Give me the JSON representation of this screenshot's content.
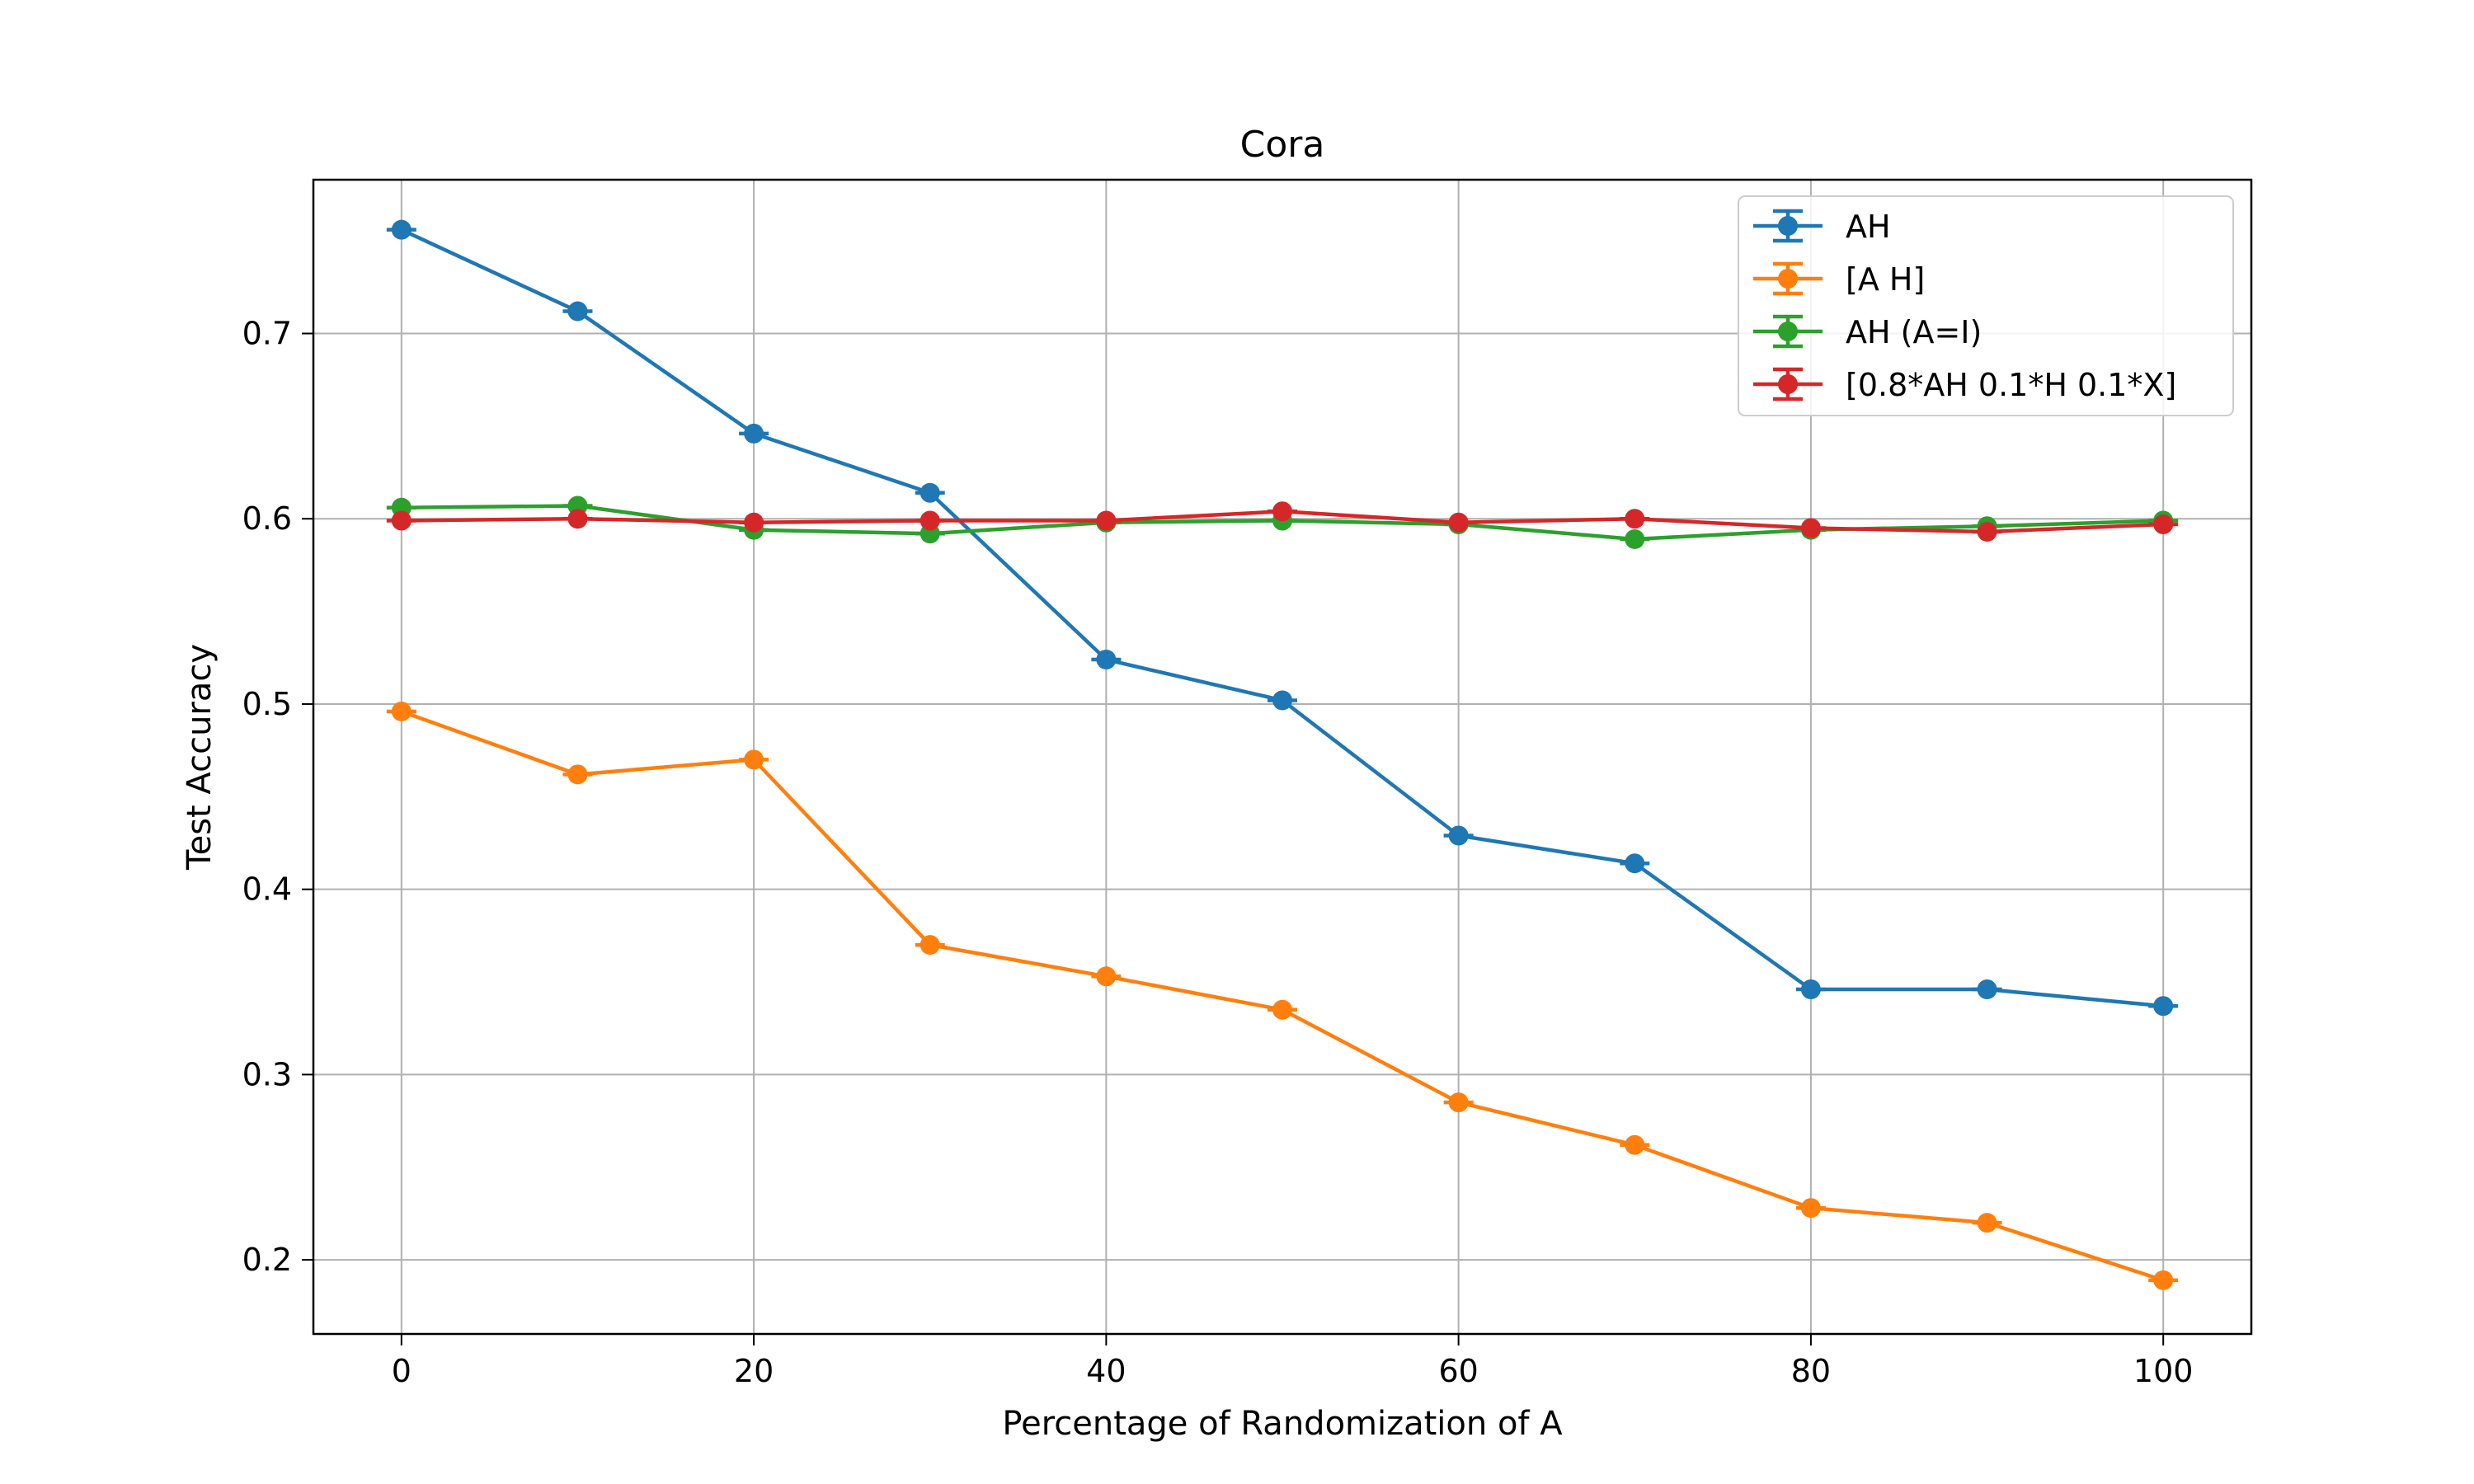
{
  "chart_data": {
    "type": "line",
    "title": "Cora",
    "xlabel": "Percentage of Randomization of A",
    "ylabel": "Test Accuracy",
    "xlim": [
      -5,
      105
    ],
    "ylim": [
      0.16,
      0.783
    ],
    "xticks": [
      0,
      20,
      40,
      60,
      80,
      100
    ],
    "yticks": [
      0.2,
      0.3,
      0.4,
      0.5,
      0.6,
      0.7
    ],
    "grid": true,
    "legend_position": "top-right",
    "x": [
      0,
      10,
      20,
      30,
      40,
      50,
      60,
      70,
      80,
      90,
      100
    ],
    "series": [
      {
        "name": "AH",
        "color": "#1f77b4",
        "values": [
          0.756,
          0.712,
          0.646,
          0.614,
          0.524,
          0.502,
          0.429,
          0.414,
          0.346,
          0.346,
          0.337
        ]
      },
      {
        "name": "[A H]",
        "color": "#ff7f0e",
        "values": [
          0.496,
          0.462,
          0.47,
          0.37,
          0.353,
          0.335,
          0.285,
          0.262,
          0.228,
          0.22,
          0.189
        ]
      },
      {
        "name": "AH (A=I)",
        "color": "#2ca02c",
        "values": [
          0.606,
          0.607,
          0.594,
          0.592,
          0.598,
          0.599,
          0.597,
          0.589,
          0.594,
          0.596,
          0.599
        ]
      },
      {
        "name": "[0.8*AH 0.1*H 0.1*X]",
        "color": "#d62728",
        "values": [
          0.599,
          0.6,
          0.598,
          0.599,
          0.599,
          0.604,
          0.598,
          0.6,
          0.595,
          0.593,
          0.597
        ]
      }
    ]
  }
}
